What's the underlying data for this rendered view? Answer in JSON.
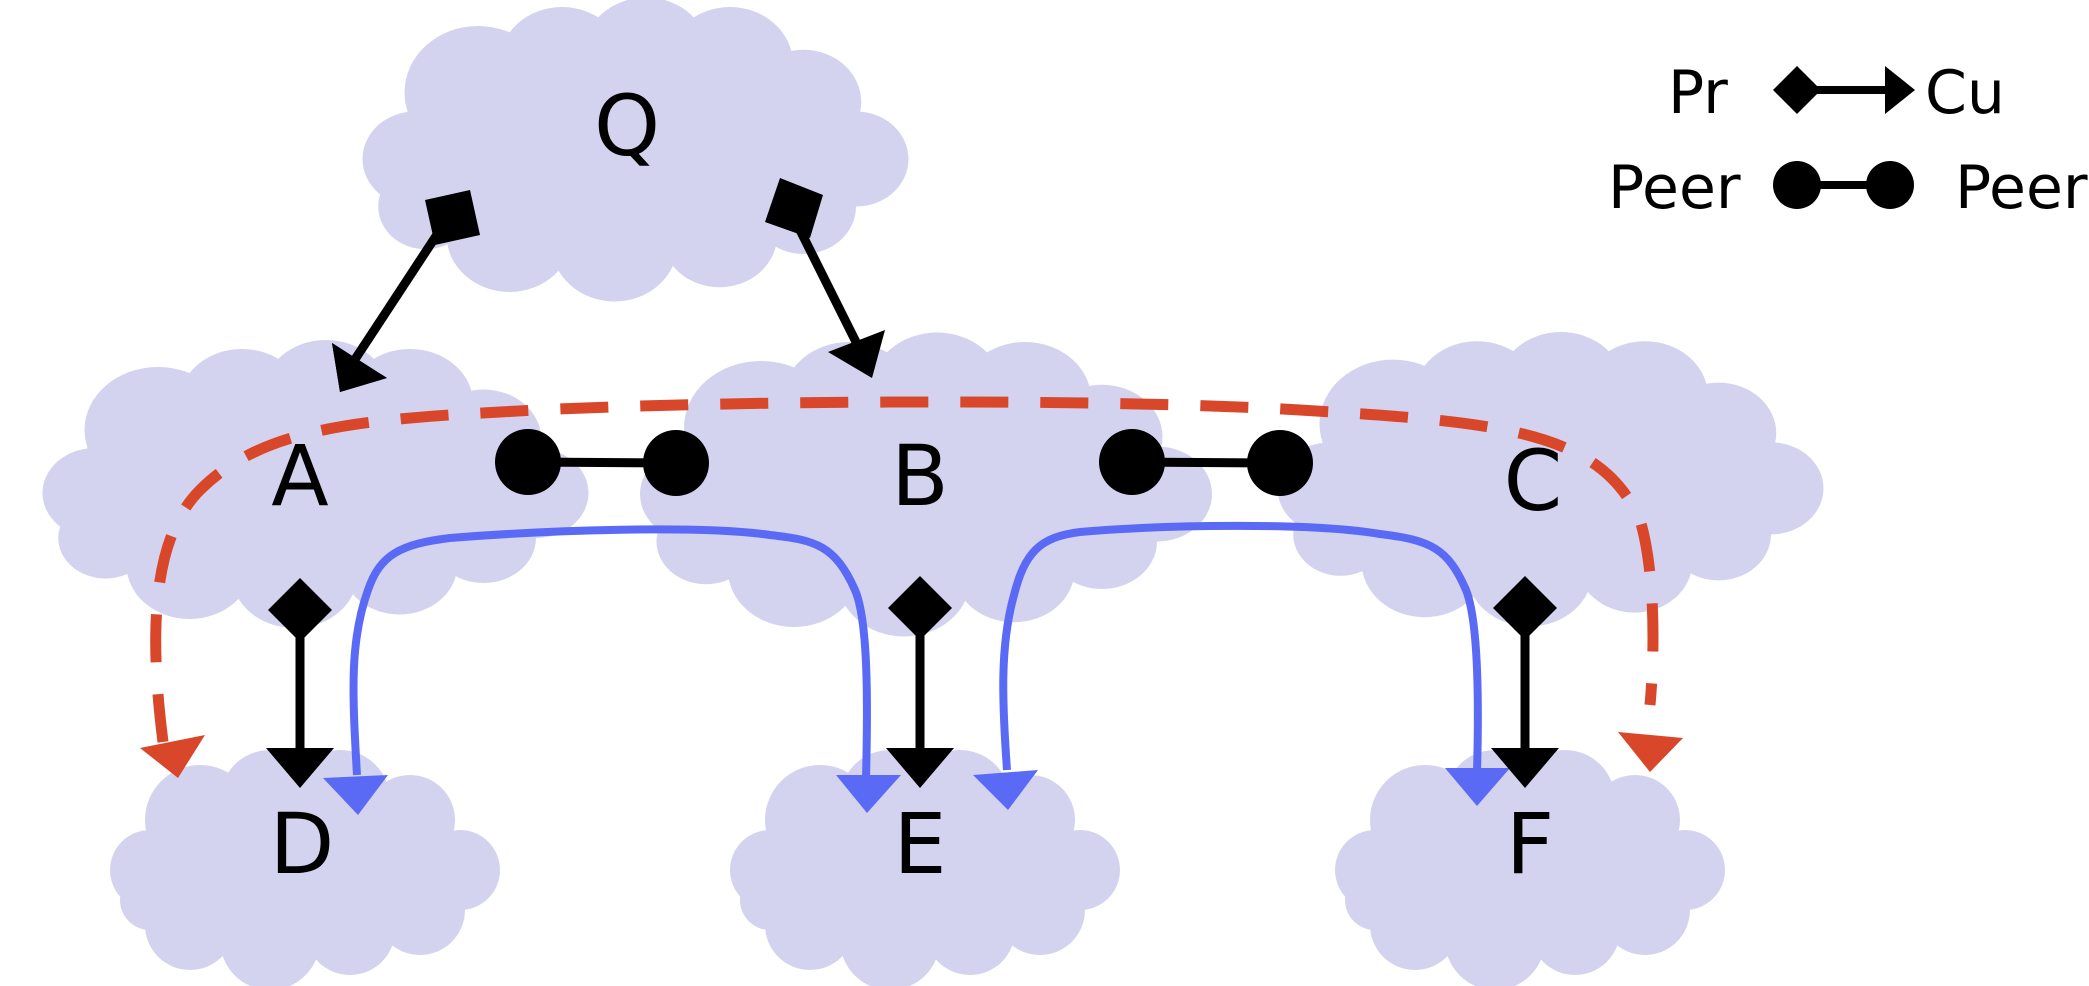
{
  "nodes": {
    "q": "Q",
    "a": "A",
    "b": "B",
    "c": "C",
    "d": "D",
    "e": "E",
    "f": "F"
  },
  "legend": {
    "provider": "Pr",
    "customer": "Cu",
    "peer_left": "Peer",
    "peer_right": "Peer"
  },
  "colors": {
    "cloud": "#d3d3ef",
    "edge": "#000000",
    "valley_free_path": "#d9472b",
    "route_path": "#5b6af5"
  }
}
